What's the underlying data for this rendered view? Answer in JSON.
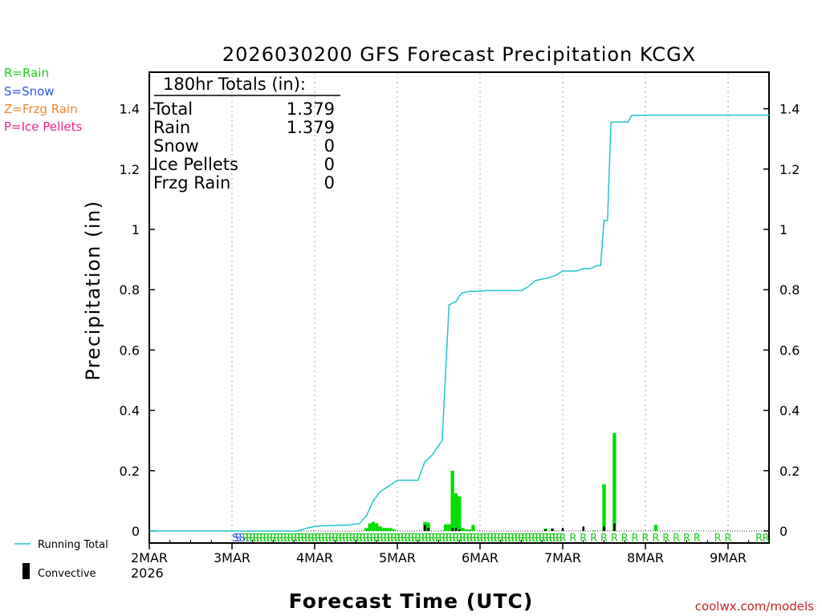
{
  "legend_ptypes": [
    {
      "label": "R=Rain",
      "color": "#22cc22"
    },
    {
      "label": "S=Snow",
      "color": "#3355ee"
    },
    {
      "label": "Z=Frzg Rain",
      "color": "#ee8833"
    },
    {
      "label": "P=Ice Pellets",
      "color": "#ee2288"
    }
  ],
  "totals_box": {
    "header": "180hr Totals (in):",
    "rows": [
      {
        "label": "Total",
        "value": "1.379"
      },
      {
        "label": "Rain",
        "value": "1.379"
      },
      {
        "label": "Snow",
        "value": "0"
      },
      {
        "label": "Ice Pellets",
        "value": "0"
      },
      {
        "label": "Frzg Rain",
        "value": "0"
      }
    ]
  },
  "bottom_legend": {
    "running_total": "Running Total",
    "convective": "Convective"
  },
  "footer": {
    "year": "2026",
    "credit": "coolwx.com/models"
  },
  "colors": {
    "running_total": "#22c4cc",
    "rain_bar": "#00dd00",
    "convective_bar": "#000000",
    "credit": "#cc2222",
    "grid": "#aaaaaa"
  },
  "chart_data": {
    "type": "bar",
    "title": "2026030200 GFS Forecast Precipitation KCGX",
    "xlabel": "Forecast Time (UTC)",
    "ylabel": "Precipitation (in)",
    "ylim": [
      0,
      1.5
    ],
    "xlim_hours": [
      0,
      180
    ],
    "yticks": [
      0,
      0.2,
      0.4,
      0.6,
      0.8,
      1,
      1.2,
      1.4
    ],
    "ytick_labels": [
      "0",
      "0.2",
      "0.4",
      "0.6",
      "0.8",
      "1",
      "1.2",
      "1.4"
    ],
    "x_ticks": [
      {
        "hour": 0,
        "label": "2MAR"
      },
      {
        "hour": 24,
        "label": "3MAR"
      },
      {
        "hour": 48,
        "label": "4MAR"
      },
      {
        "hour": 72,
        "label": "5MAR"
      },
      {
        "hour": 96,
        "label": "6MAR"
      },
      {
        "hour": 120,
        "label": "7MAR"
      },
      {
        "hour": 144,
        "label": "8MAR"
      },
      {
        "hour": 168,
        "label": "9MAR"
      }
    ],
    "running_total": {
      "name": "Running Total",
      "hours": [
        0,
        43,
        46,
        48,
        50,
        58,
        61,
        63,
        65,
        67,
        69,
        72,
        75,
        78,
        80,
        82,
        85,
        87,
        88,
        89,
        90,
        91,
        93,
        95,
        96,
        98,
        108,
        110,
        112,
        114,
        116,
        118,
        120,
        122,
        124,
        126,
        128,
        129,
        130,
        131,
        132,
        133,
        134,
        135,
        139,
        140,
        147,
        180
      ],
      "values": [
        0,
        0,
        0.01,
        0.015,
        0.017,
        0.02,
        0.025,
        0.05,
        0.1,
        0.13,
        0.145,
        0.168,
        0.168,
        0.168,
        0.23,
        0.25,
        0.3,
        0.75,
        0.755,
        0.76,
        0.78,
        0.79,
        0.795,
        0.795,
        0.795,
        0.797,
        0.797,
        0.81,
        0.83,
        0.835,
        0.84,
        0.848,
        0.862,
        0.862,
        0.862,
        0.87,
        0.87,
        0.875,
        0.88,
        0.88,
        1.03,
        1.03,
        1.355,
        1.356,
        1.356,
        1.378,
        1.379,
        1.379
      ]
    },
    "series": [
      {
        "name": "Rain",
        "bar_width_hours": 1,
        "hours": [
          63,
          64,
          65,
          66,
          67,
          68,
          69,
          70,
          71,
          80,
          81,
          86,
          87,
          88,
          89,
          90,
          91,
          92,
          93,
          94,
          115,
          117,
          120,
          129,
          132,
          135,
          147
        ],
        "values": [
          0.01,
          0.025,
          0.03,
          0.025,
          0.015,
          0.01,
          0.01,
          0.01,
          0.005,
          0.03,
          0.028,
          0.022,
          0.022,
          0.2,
          0.125,
          0.115,
          0.01,
          0.005,
          0.005,
          0.02,
          0.008,
          0.008,
          0.003,
          0.002,
          0.155,
          0.325,
          0.02
        ]
      },
      {
        "name": "Convective",
        "bar_width_hours": 0.6,
        "hours": [
          80,
          81,
          88,
          89,
          90,
          115,
          117,
          120,
          126,
          132,
          135
        ],
        "values": [
          0.02,
          0.01,
          0.01,
          0.01,
          0.005,
          0.005,
          0.008,
          0.01,
          0.015,
          0.015,
          0.025
        ]
      }
    ],
    "ptype_markers": {
      "snow": {
        "letter": "S",
        "hours": [
          25,
          25.8,
          27
        ]
      },
      "rain": {
        "letter": "R",
        "hours": [
          28,
          29,
          30,
          31,
          32,
          33,
          34,
          35,
          36,
          37,
          38,
          39,
          40,
          41,
          42,
          43,
          44,
          45,
          46,
          47,
          48,
          49,
          50,
          51,
          52,
          53,
          54,
          55,
          56,
          57,
          58,
          59,
          60,
          61,
          62,
          63,
          64,
          65,
          66,
          67,
          68,
          69,
          70,
          71,
          72,
          73,
          74,
          75,
          76,
          77,
          78,
          79,
          80,
          81,
          82,
          83,
          84,
          85,
          86,
          87,
          88,
          89,
          90,
          91,
          92,
          93,
          94,
          95,
          96,
          97,
          98,
          99,
          100,
          101,
          102,
          103,
          104,
          105,
          106,
          107,
          108,
          109,
          110,
          111,
          112,
          113,
          114,
          115,
          116,
          117,
          118,
          119,
          120,
          123,
          126,
          129,
          132,
          135,
          138,
          141,
          144,
          147,
          150,
          153,
          156,
          159,
          165,
          168,
          177,
          179
        ]
      }
    }
  }
}
